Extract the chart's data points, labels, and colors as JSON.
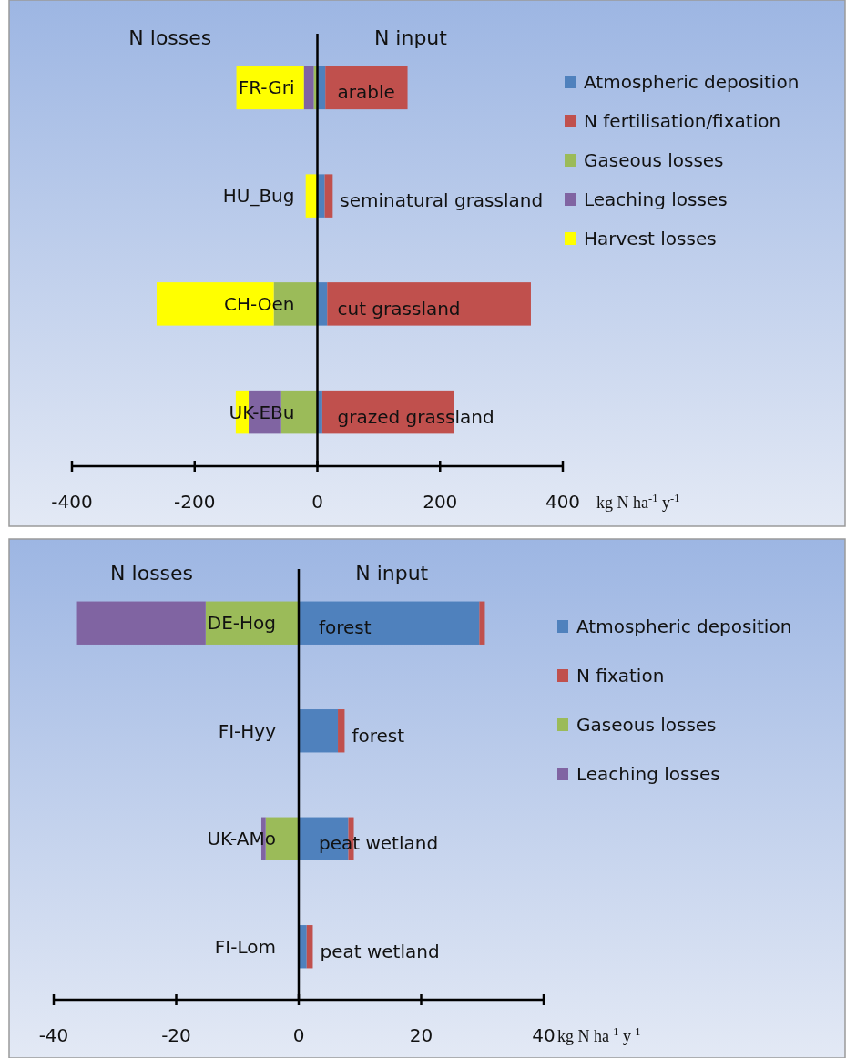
{
  "chart_data": [
    {
      "type": "bar",
      "orientation": "horizontal",
      "stacked": true,
      "categories": [
        "FR-Gri",
        "HU_Bug",
        "CH-Oen",
        "UK-EBu"
      ],
      "series": [
        {
          "name": "Atmospheric deposition",
          "color": "#4f81bd",
          "values": [
            13,
            12,
            16,
            8
          ]
        },
        {
          "name": "N fertilisation/fixation",
          "color": "#c0504d",
          "values": [
            134,
            13,
            332,
            214
          ]
        },
        {
          "name": "Gaseous losses",
          "color": "#9bbb59",
          "values": [
            -6,
            null,
            -71,
            -59
          ]
        },
        {
          "name": "Leaching losses",
          "color": "#8064a2",
          "values": [
            -16,
            null,
            null,
            -53
          ]
        },
        {
          "name": "Harvest losses",
          "color": "#ffff00",
          "values": [
            -110,
            -19,
            -191,
            -21
          ]
        }
      ],
      "xlim": [
        -400,
        400
      ],
      "xticks": [
        -400,
        -200,
        0,
        200,
        400
      ],
      "xlabel": "kg N ha$^{-1}$ y$^{-1}$",
      "legend": "right",
      "grid": false,
      "annotations": [
        "N losses",
        "N input",
        "arable",
        "seminatural grassland",
        "cut grassland",
        "grazed grassland"
      ]
    },
    {
      "type": "bar",
      "orientation": "horizontal",
      "stacked": true,
      "categories": [
        "DE-Hog",
        "FI-Hyy",
        "UK-AMo",
        "FI-Lom"
      ],
      "series": [
        {
          "name": "Atmospheric deposition",
          "color": "#4f81bd",
          "values": [
            29.5,
            6.4,
            8.1,
            1.3
          ]
        },
        {
          "name": "N fixation",
          "color": "#c0504d",
          "values": [
            0.9,
            1.1,
            0.9,
            1.0
          ]
        },
        {
          "name": "Gaseous losses",
          "color": "#9bbb59",
          "values": [
            -15.2,
            null,
            -5.4,
            null
          ]
        },
        {
          "name": "Leaching losses",
          "color": "#8064a2",
          "values": [
            -21,
            null,
            -0.7,
            null
          ]
        }
      ],
      "xlim": [
        -40,
        40
      ],
      "xticks": [
        -40,
        -20,
        0,
        20,
        40
      ],
      "xlabel": "kg N ha$^{-1}$ y$^{-1}$",
      "legend": "right",
      "grid": false,
      "annotations": [
        "N losses",
        "N input",
        "forest",
        "forest",
        "peat wetland",
        "peat wetland"
      ]
    }
  ]
}
